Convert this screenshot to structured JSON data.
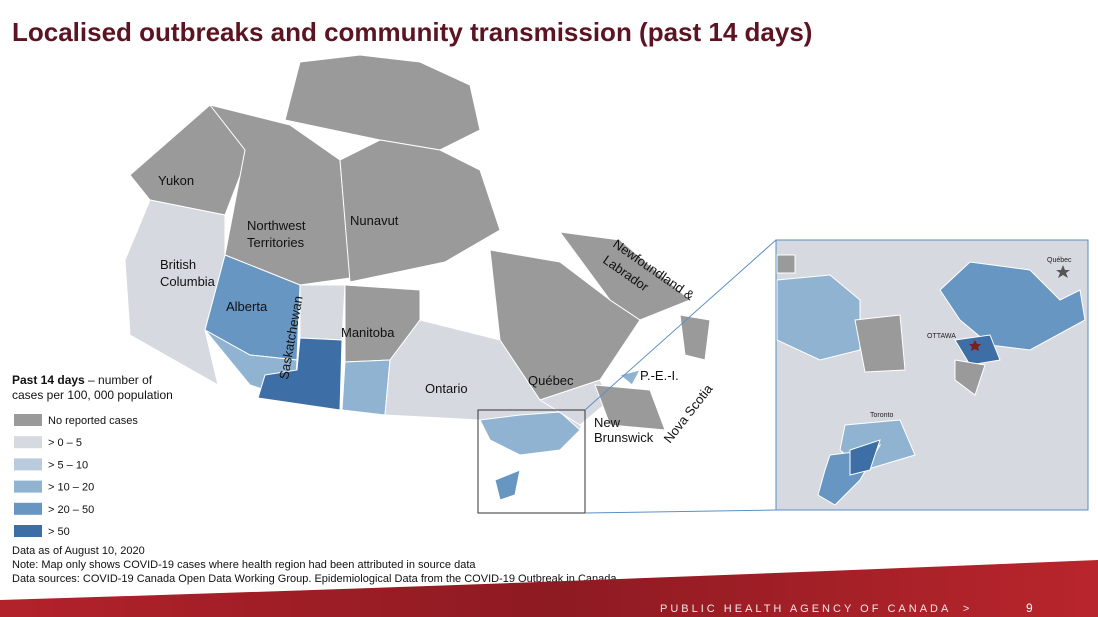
{
  "header": {
    "title": "Localised outbreaks and community transmission (past 14 days)"
  },
  "map": {
    "labels": {
      "yukon": "Yukon",
      "nwt": [
        "Northwest",
        "Territories"
      ],
      "nunavut": "Nunavut",
      "bc": [
        "British",
        "Columbia"
      ],
      "alberta": "Alberta",
      "saskatchewan": "Saskatchewan",
      "manitoba": "Manitoba",
      "ontario": "Ontario",
      "quebec": "Québec",
      "nl": [
        "Newfoundland &",
        "Labrador"
      ],
      "pei": "P.-E.-I.",
      "nb": [
        "New",
        "Brunswick"
      ],
      "ns": "Nova Scotia"
    },
    "inset_labels": {
      "quebec": "Québec",
      "ottawa": "OTTAWA",
      "toronto": "Toronto"
    }
  },
  "legend": {
    "title_bold": "Past 14 days",
    "title_rest": " – number of",
    "title_line2": "cases per 100, 000 population",
    "items": [
      {
        "label": "No reported cases",
        "color": "#9a9a9a"
      },
      {
        "label": "> 0 – 5",
        "color": "#d6d9e0"
      },
      {
        "label": "> 5 – 10",
        "color": "#b9cbdc"
      },
      {
        "label": "> 10 – 20",
        "color": "#8fb3d1"
      },
      {
        "label": "> 20 – 50",
        "color": "#6796c3"
      },
      {
        "label": "> 50",
        "color": "#3e6ea6"
      }
    ]
  },
  "notes": [
    "Data as of August 10, 2020",
    "Note: Map only shows COVID-19 cases where health region had been attributed in source data",
    "Data sources: COVID-19 Canada Open Data Working Group. Epidemiological Data from the COVID-19 Outbreak in Canada"
  ],
  "footer": {
    "agency": "PUBLIC HEALTH AGENCY OF CANADA  >",
    "page": "9"
  }
}
